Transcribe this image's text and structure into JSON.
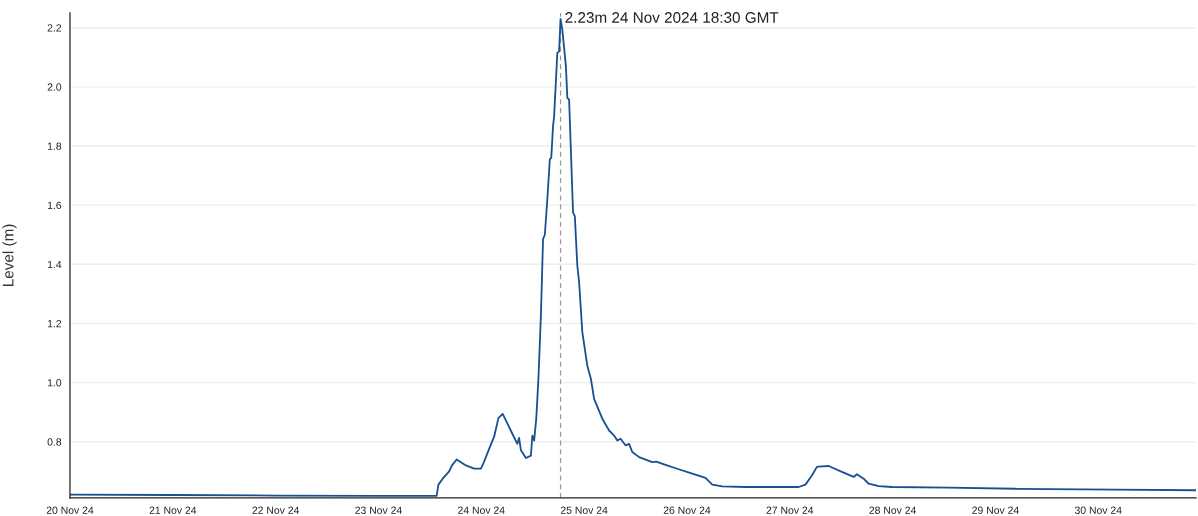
{
  "chart_data": {
    "type": "line",
    "ylabel": "Level (m)",
    "x": [
      "2024-11-20T00:00",
      "2024-11-21T00:00",
      "2024-11-22T00:00",
      "2024-11-23T00:00",
      "2024-11-23T13:00",
      "2024-11-23T13:35",
      "2024-11-23T14:00",
      "2024-11-23T15:00",
      "2024-11-23T16:30",
      "2024-11-23T17:10",
      "2024-11-23T18:15",
      "2024-11-23T20:25",
      "2024-11-23T22:20",
      "2024-11-23T23:55",
      "2024-11-24T00:40",
      "2024-11-24T01:50",
      "2024-11-24T03:00",
      "2024-11-24T04:00",
      "2024-11-24T05:00",
      "2024-11-24T05:45",
      "2024-11-24T07:15",
      "2024-11-24T08:25",
      "2024-11-24T08:50",
      "2024-11-24T09:15",
      "2024-11-24T10:25",
      "2024-11-24T11:35",
      "2024-11-24T11:55",
      "2024-11-24T12:20",
      "2024-11-24T12:50",
      "2024-11-24T13:05",
      "2024-11-24T13:20",
      "2024-11-24T13:55",
      "2024-11-24T14:25",
      "2024-11-24T14:50",
      "2024-11-24T15:25",
      "2024-11-24T16:00",
      "2024-11-24T16:20",
      "2024-11-24T16:45",
      "2024-11-24T17:00",
      "2024-11-24T17:45",
      "2024-11-24T18:10",
      "2024-11-24T18:30",
      "2024-11-24T18:55",
      "2024-11-24T19:45",
      "2024-11-24T20:05",
      "2024-11-24T20:30",
      "2024-11-24T21:25",
      "2024-11-24T21:50",
      "2024-11-24T22:25",
      "2024-11-24T22:50",
      "2024-11-24T23:35",
      "2024-11-25T00:45",
      "2024-11-25T01:35",
      "2024-11-25T02:20",
      "2024-11-25T04:15",
      "2024-11-25T05:50",
      "2024-11-25T07:00",
      "2024-11-25T07:45",
      "2024-11-25T08:30",
      "2024-11-25T09:40",
      "2024-11-25T10:30",
      "2024-11-25T11:15",
      "2024-11-25T12:50",
      "2024-11-25T15:55",
      "2024-11-25T16:50",
      "2024-11-25T19:00",
      "2024-11-25T22:05",
      "2024-11-26T01:15",
      "2024-11-26T04:20",
      "2024-11-26T05:55",
      "2024-11-26T08:15",
      "2024-11-26T13:40",
      "2024-11-27T02:05",
      "2024-11-27T03:40",
      "2024-11-27T05:10",
      "2024-11-27T06:20",
      "2024-11-27T07:30",
      "2024-11-27T09:05",
      "2024-11-27T12:10",
      "2024-11-27T14:55",
      "2024-11-27T15:40",
      "2024-11-27T17:15",
      "2024-11-27T18:25",
      "2024-11-27T20:45",
      "2024-11-27T23:50",
      "2024-11-28T13:00",
      "2024-11-29T04:35",
      "2024-11-30T03:55",
      "2024-11-30T22:50"
    ],
    "series": [
      {
        "color": "#1a4f91",
        "values": [
          0.621,
          0.62,
          0.618,
          0.617,
          0.617,
          0.617,
          0.655,
          0.675,
          0.7,
          0.72,
          0.74,
          0.72,
          0.709,
          0.709,
          0.733,
          0.776,
          0.817,
          0.88,
          0.894,
          0.872,
          0.827,
          0.793,
          0.813,
          0.771,
          0.745,
          0.753,
          0.821,
          0.804,
          0.878,
          0.945,
          1.013,
          1.226,
          1.485,
          1.5,
          1.62,
          1.755,
          1.76,
          1.867,
          1.9,
          2.115,
          2.12,
          2.23,
          2.193,
          2.07,
          1.963,
          1.957,
          1.575,
          1.563,
          1.395,
          1.34,
          1.171,
          1.057,
          1.013,
          0.945,
          0.878,
          0.838,
          0.821,
          0.804,
          0.81,
          0.788,
          0.793,
          0.765,
          0.748,
          0.731,
          0.733,
          0.722,
          0.707,
          0.692,
          0.678,
          0.655,
          0.649,
          0.647,
          0.647,
          0.655,
          0.686,
          0.715,
          0.717,
          0.718,
          0.698,
          0.681,
          0.69,
          0.675,
          0.658,
          0.65,
          0.647,
          0.645,
          0.641,
          0.638,
          0.636
        ]
      }
    ],
    "xlim": [
      "2024-11-20T00:00",
      "2024-11-30T22:50"
    ],
    "xticks": [
      {
        "value": "2024-11-20",
        "label": "20 Nov 24"
      },
      {
        "value": "2024-11-21",
        "label": "21 Nov 24"
      },
      {
        "value": "2024-11-22",
        "label": "22 Nov 24"
      },
      {
        "value": "2024-11-23",
        "label": "23 Nov 24"
      },
      {
        "value": "2024-11-24",
        "label": "24 Nov 24"
      },
      {
        "value": "2024-11-25",
        "label": "25 Nov 24"
      },
      {
        "value": "2024-11-26",
        "label": "26 Nov 24"
      },
      {
        "value": "2024-11-27",
        "label": "27 Nov 24"
      },
      {
        "value": "2024-11-28",
        "label": "28 Nov 24"
      },
      {
        "value": "2024-11-29",
        "label": "29 Nov 24"
      },
      {
        "value": "2024-11-30",
        "label": "30 Nov 24"
      }
    ],
    "ylim": [
      0.61,
      2.25
    ],
    "yticks": [
      0.8,
      {
        "value": 1,
        "label": "1.0"
      },
      1.2,
      1.4,
      1.6,
      1.8,
      {
        "value": 2,
        "label": "2.0"
      },
      2.2
    ],
    "grid": "y",
    "line_style": "solid",
    "ref_lines": [
      {
        "axis": "x",
        "value": "2024-11-24T18:30",
        "color": "#999999",
        "line_style": "dashed"
      }
    ],
    "annotations": [
      {
        "text": "2.23m 24 Nov 2024 18:30 GMT",
        "x": "2024-11-24T18:30",
        "y": 2.23
      }
    ]
  }
}
